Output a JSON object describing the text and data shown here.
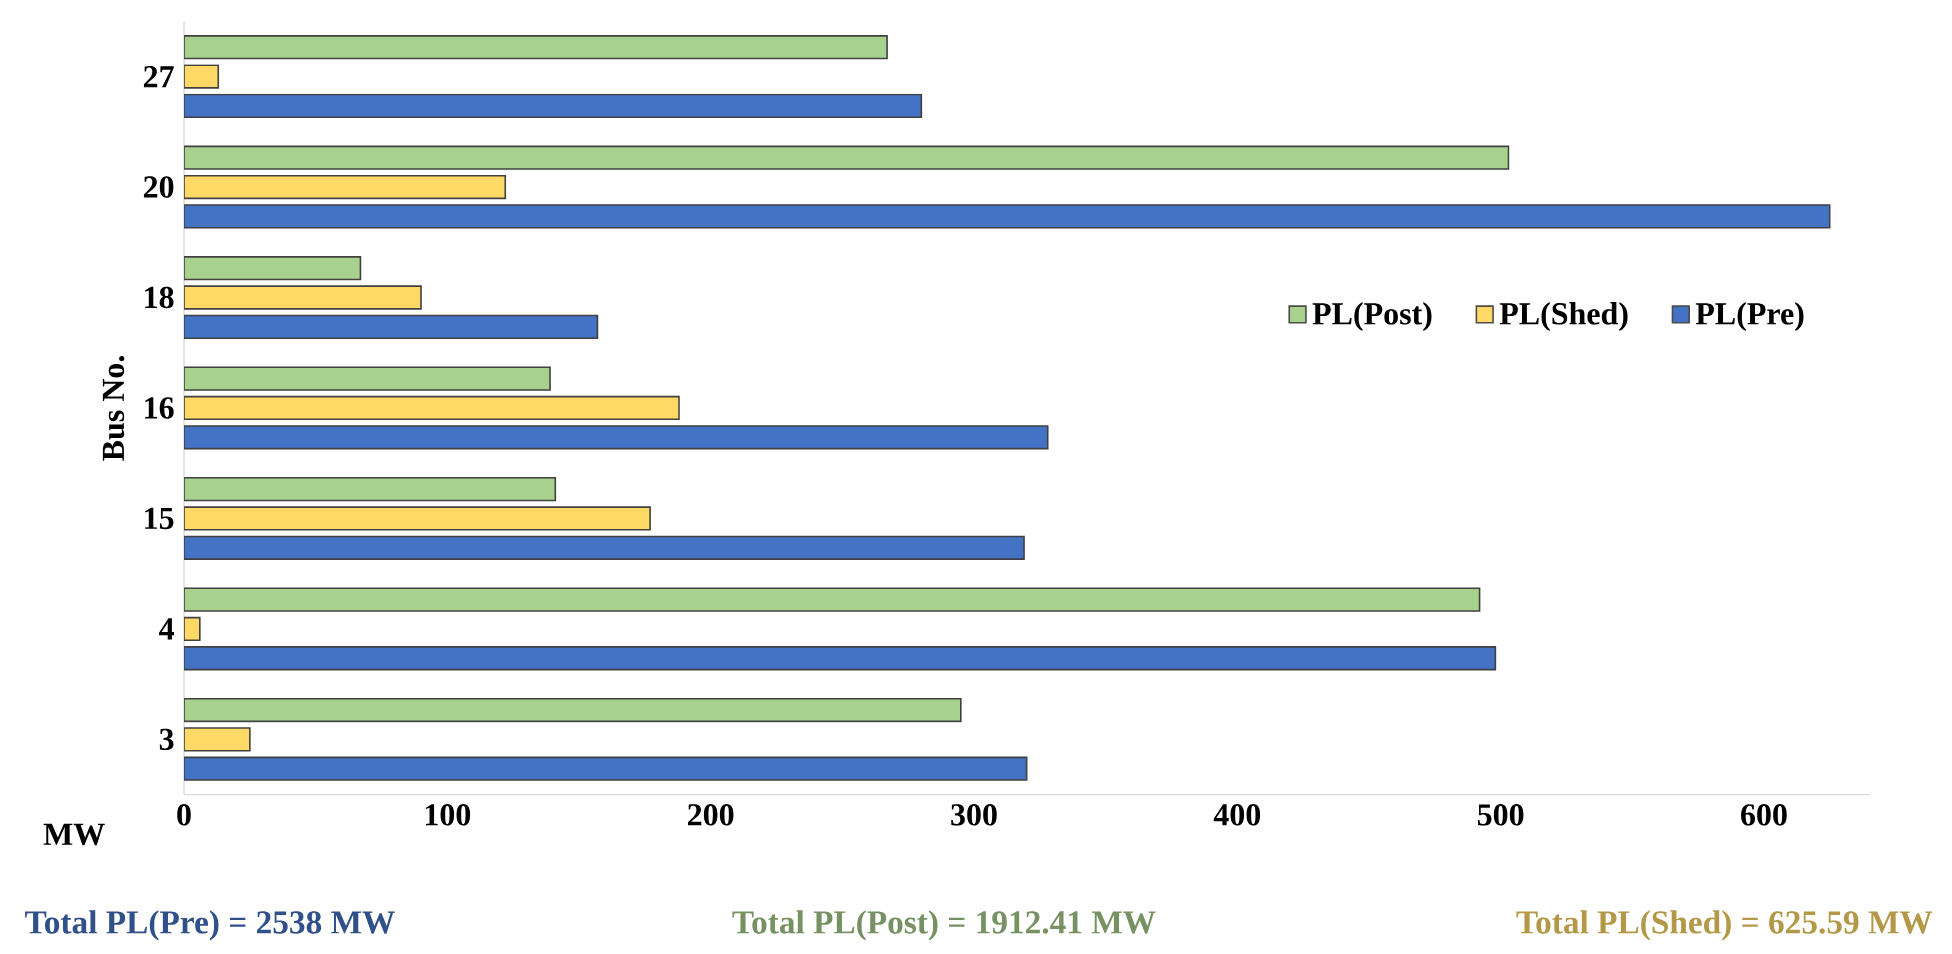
{
  "chart_data": {
    "type": "bar",
    "orientation": "horizontal",
    "xlabel": "MW",
    "ylabel": "Bus No.",
    "categories": [
      "27",
      "20",
      "18",
      "16",
      "15",
      "4",
      "3"
    ],
    "series": [
      {
        "name": "PL(Post)",
        "color": "#a9d18e",
        "values": [
          267,
          503,
          67,
          139,
          141,
          492,
          295
        ]
      },
      {
        "name": "PL(Shed)",
        "color": "#ffd966",
        "values": [
          13,
          122,
          90,
          188,
          177,
          6,
          25
        ]
      },
      {
        "name": "PL(Pre)",
        "color": "#4472c4",
        "values": [
          280,
          625,
          157,
          328,
          319,
          498,
          320
        ]
      }
    ],
    "xlim": [
      0,
      640
    ],
    "xticks": [
      0,
      100,
      200,
      300,
      400,
      500,
      600
    ],
    "legend": "right",
    "grid": false,
    "annotations": [
      "Total PL(Pre) = 2538 MW",
      "Total PL(Post) = 1912.41 MW",
      "Total PL(Shed) = 625.59 MW"
    ]
  }
}
